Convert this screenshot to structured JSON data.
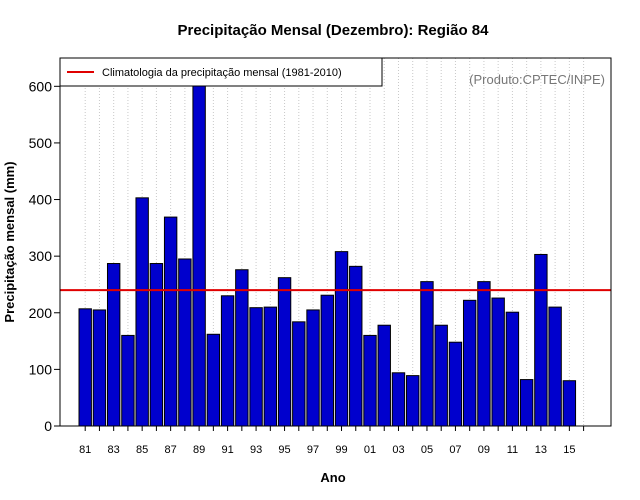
{
  "chart_data": {
    "type": "bar",
    "title": "Precipitação Mensal (Dezembro): Região 84",
    "xlabel": "Ano",
    "ylabel": "Precipitação mensal (mm)",
    "credit": "(Produto:CPTEC/INPE)",
    "ylim": [
      0,
      650
    ],
    "yticks": [
      0,
      100,
      200,
      300,
      400,
      500,
      600
    ],
    "categories": [
      "81",
      "82",
      "83",
      "84",
      "85",
      "86",
      "87",
      "88",
      "89",
      "90",
      "91",
      "92",
      "93",
      "94",
      "95",
      "96",
      "97",
      "98",
      "99",
      "00",
      "01",
      "02",
      "03",
      "04",
      "05",
      "06",
      "07",
      "08",
      "09",
      "10",
      "11",
      "12",
      "13",
      "14",
      "15"
    ],
    "xtick_labels": [
      "81",
      "83",
      "85",
      "87",
      "89",
      "91",
      "93",
      "95",
      "97",
      "99",
      "01",
      "03",
      "05",
      "07",
      "09",
      "11",
      "13",
      "15"
    ],
    "values": [
      207,
      205,
      287,
      160,
      403,
      287,
      369,
      295,
      650,
      162,
      230,
      276,
      209,
      210,
      262,
      184,
      205,
      231,
      308,
      282,
      160,
      178,
      94,
      89,
      255,
      178,
      148,
      222,
      255,
      226,
      201,
      82,
      303,
      210,
      80
    ],
    "bar_color": "#0000cd",
    "climatology": {
      "label": "Climatologia da precipitação mensal (1981-2010)",
      "value": 240,
      "color": "#e00000"
    },
    "legend_position": "top-left",
    "grid": "vertical-dotted"
  }
}
